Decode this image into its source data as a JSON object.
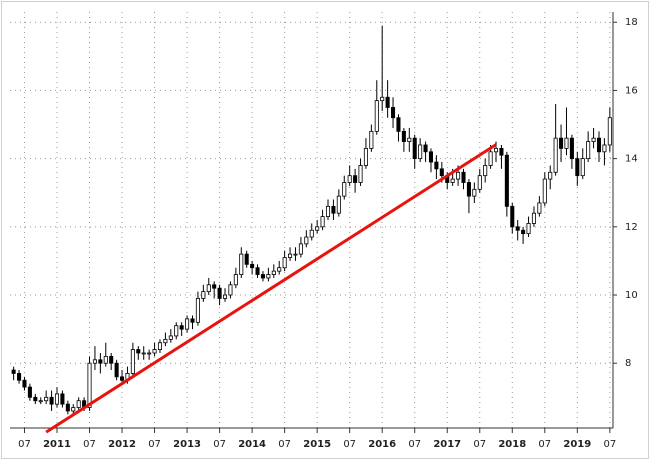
{
  "chart_data": {
    "type": "candlestick",
    "x": [
      "2010-05",
      "2010-06",
      "2010-07",
      "2010-08",
      "2010-09",
      "2010-10",
      "2010-11",
      "2010-12",
      "2011-01",
      "2011-02",
      "2011-03",
      "2011-04",
      "2011-05",
      "2011-06",
      "2011-07",
      "2011-08",
      "2011-09",
      "2011-10",
      "2011-11",
      "2011-12",
      "2012-01",
      "2012-02",
      "2012-03",
      "2012-04",
      "2012-05",
      "2012-06",
      "2012-07",
      "2012-08",
      "2012-09",
      "2012-10",
      "2012-11",
      "2012-12",
      "2013-01",
      "2013-02",
      "2013-03",
      "2013-04",
      "2013-05",
      "2013-06",
      "2013-07",
      "2013-08",
      "2013-09",
      "2013-10",
      "2013-11",
      "2013-12",
      "2014-01",
      "2014-02",
      "2014-03",
      "2014-04",
      "2014-05",
      "2014-06",
      "2014-07",
      "2014-08",
      "2014-09",
      "2014-10",
      "2014-11",
      "2014-12",
      "2015-01",
      "2015-02",
      "2015-03",
      "2015-04",
      "2015-05",
      "2015-06",
      "2015-07",
      "2015-08",
      "2015-09",
      "2015-10",
      "2015-11",
      "2015-12",
      "2016-01",
      "2016-02",
      "2016-03",
      "2016-04",
      "2016-05",
      "2016-06",
      "2016-07",
      "2016-08",
      "2016-09",
      "2016-10",
      "2016-11",
      "2016-12",
      "2017-01",
      "2017-02",
      "2017-03",
      "2017-04",
      "2017-05",
      "2017-06",
      "2017-07",
      "2017-08",
      "2017-09",
      "2017-10",
      "2017-11",
      "2017-12",
      "2018-01",
      "2018-02",
      "2018-03",
      "2018-04",
      "2018-05",
      "2018-06",
      "2018-07",
      "2018-08",
      "2018-09",
      "2018-10",
      "2018-11",
      "2018-12",
      "2019-01",
      "2019-02",
      "2019-03",
      "2019-04",
      "2019-05",
      "2019-06",
      "2019-07"
    ],
    "ohlc": [
      [
        7.8,
        7.9,
        7.5,
        7.7
      ],
      [
        7.7,
        7.8,
        7.4,
        7.5
      ],
      [
        7.5,
        7.6,
        7.2,
        7.3
      ],
      [
        7.3,
        7.4,
        6.9,
        7.0
      ],
      [
        7.0,
        7.1,
        6.8,
        6.9
      ],
      [
        6.9,
        7.0,
        6.8,
        6.9
      ],
      [
        6.9,
        7.2,
        6.8,
        7.0
      ],
      [
        7.0,
        7.2,
        6.6,
        6.8
      ],
      [
        6.8,
        7.3,
        6.7,
        7.1
      ],
      [
        7.1,
        7.2,
        6.7,
        6.8
      ],
      [
        6.8,
        6.9,
        6.5,
        6.6
      ],
      [
        6.6,
        6.8,
        6.5,
        6.7
      ],
      [
        6.7,
        7.0,
        6.6,
        6.9
      ],
      [
        6.9,
        7.0,
        6.6,
        6.7
      ],
      [
        6.7,
        8.2,
        6.6,
        8.0
      ],
      [
        8.0,
        8.5,
        7.8,
        8.1
      ],
      [
        8.1,
        8.3,
        7.7,
        8.0
      ],
      [
        8.0,
        8.6,
        7.9,
        8.2
      ],
      [
        8.2,
        8.3,
        7.8,
        8.0
      ],
      [
        8.0,
        8.1,
        7.5,
        7.6
      ],
      [
        7.6,
        7.8,
        7.4,
        7.5
      ],
      [
        7.5,
        7.9,
        7.4,
        7.7
      ],
      [
        7.7,
        8.6,
        7.6,
        8.4
      ],
      [
        8.4,
        8.5,
        8.1,
        8.3
      ],
      [
        8.3,
        8.5,
        8.1,
        8.3
      ],
      [
        8.3,
        8.4,
        8.1,
        8.3
      ],
      [
        8.3,
        8.6,
        8.2,
        8.4
      ],
      [
        8.4,
        8.7,
        8.3,
        8.6
      ],
      [
        8.6,
        8.9,
        8.5,
        8.7
      ],
      [
        8.7,
        9.0,
        8.6,
        8.8
      ],
      [
        8.8,
        9.2,
        8.7,
        9.1
      ],
      [
        9.1,
        9.2,
        8.8,
        9.0
      ],
      [
        9.0,
        9.4,
        8.9,
        9.3
      ],
      [
        9.3,
        9.4,
        9.0,
        9.2
      ],
      [
        9.2,
        10.1,
        9.1,
        9.9
      ],
      [
        9.9,
        10.3,
        9.8,
        10.1
      ],
      [
        10.1,
        10.5,
        10.0,
        10.3
      ],
      [
        10.3,
        10.4,
        9.9,
        10.2
      ],
      [
        10.2,
        10.3,
        9.7,
        9.9
      ],
      [
        9.9,
        10.2,
        9.8,
        10.0
      ],
      [
        10.0,
        10.4,
        9.9,
        10.3
      ],
      [
        10.3,
        10.8,
        10.2,
        10.6
      ],
      [
        10.6,
        11.4,
        10.5,
        11.2
      ],
      [
        11.2,
        11.3,
        10.8,
        10.9
      ],
      [
        10.9,
        11.0,
        10.6,
        10.8
      ],
      [
        10.8,
        10.9,
        10.5,
        10.6
      ],
      [
        10.6,
        10.7,
        10.4,
        10.5
      ],
      [
        10.5,
        10.8,
        10.4,
        10.6
      ],
      [
        10.6,
        10.9,
        10.5,
        10.7
      ],
      [
        10.7,
        11.0,
        10.6,
        10.8
      ],
      [
        10.8,
        11.3,
        10.7,
        11.1
      ],
      [
        11.1,
        11.4,
        11.0,
        11.2
      ],
      [
        11.2,
        11.4,
        11.0,
        11.2
      ],
      [
        11.2,
        11.7,
        11.1,
        11.5
      ],
      [
        11.5,
        11.9,
        11.4,
        11.7
      ],
      [
        11.7,
        12.1,
        11.6,
        11.9
      ],
      [
        11.9,
        12.2,
        11.8,
        12.0
      ],
      [
        12.0,
        12.5,
        11.9,
        12.3
      ],
      [
        12.3,
        12.8,
        12.2,
        12.6
      ],
      [
        12.6,
        12.8,
        12.2,
        12.4
      ],
      [
        12.4,
        13.1,
        12.3,
        12.9
      ],
      [
        12.9,
        13.5,
        12.8,
        13.3
      ],
      [
        13.3,
        13.8,
        13.2,
        13.5
      ],
      [
        13.5,
        13.7,
        13.0,
        13.3
      ],
      [
        13.3,
        14.0,
        13.2,
        13.8
      ],
      [
        13.8,
        14.6,
        13.7,
        14.3
      ],
      [
        14.3,
        15.0,
        14.2,
        14.8
      ],
      [
        14.8,
        16.3,
        14.7,
        15.7
      ],
      [
        15.7,
        17.9,
        15.4,
        15.8
      ],
      [
        15.8,
        16.3,
        15.2,
        15.5
      ],
      [
        15.5,
        15.8,
        14.9,
        15.2
      ],
      [
        15.2,
        15.3,
        14.5,
        14.8
      ],
      [
        14.8,
        14.9,
        14.2,
        14.5
      ],
      [
        14.5,
        14.9,
        14.2,
        14.6
      ],
      [
        14.6,
        14.7,
        13.7,
        14.0
      ],
      [
        14.0,
        14.6,
        13.9,
        14.4
      ],
      [
        14.4,
        14.5,
        13.9,
        14.2
      ],
      [
        14.2,
        14.3,
        13.6,
        13.9
      ],
      [
        13.9,
        14.1,
        13.4,
        13.7
      ],
      [
        13.7,
        13.9,
        13.3,
        13.5
      ],
      [
        13.5,
        13.6,
        13.1,
        13.3
      ],
      [
        13.3,
        13.7,
        13.2,
        13.4
      ],
      [
        13.4,
        13.8,
        13.2,
        13.6
      ],
      [
        13.6,
        13.7,
        13.1,
        13.3
      ],
      [
        13.3,
        13.4,
        12.4,
        12.9
      ],
      [
        12.9,
        13.3,
        12.7,
        13.1
      ],
      [
        13.1,
        13.7,
        13.0,
        13.5
      ],
      [
        13.5,
        14.0,
        13.3,
        13.8
      ],
      [
        13.8,
        14.4,
        13.7,
        14.2
      ],
      [
        14.2,
        14.5,
        13.9,
        14.3
      ],
      [
        14.3,
        14.4,
        13.7,
        14.1
      ],
      [
        14.1,
        14.2,
        12.3,
        12.6
      ],
      [
        12.6,
        12.7,
        11.8,
        12.0
      ],
      [
        12.0,
        12.2,
        11.6,
        11.9
      ],
      [
        11.9,
        12.0,
        11.5,
        11.8
      ],
      [
        11.8,
        12.3,
        11.7,
        12.1
      ],
      [
        12.1,
        12.6,
        12.0,
        12.4
      ],
      [
        12.4,
        12.9,
        12.3,
        12.7
      ],
      [
        12.7,
        13.6,
        12.6,
        13.4
      ],
      [
        13.4,
        13.8,
        13.1,
        13.6
      ],
      [
        13.6,
        15.6,
        13.5,
        14.6
      ],
      [
        14.6,
        15.0,
        13.9,
        14.3
      ],
      [
        14.3,
        15.5,
        14.1,
        14.6
      ],
      [
        14.6,
        14.7,
        13.7,
        14.0
      ],
      [
        14.0,
        14.2,
        13.2,
        13.5
      ],
      [
        13.5,
        14.3,
        13.4,
        14.0
      ],
      [
        14.0,
        14.8,
        13.9,
        14.5
      ],
      [
        14.5,
        14.9,
        14.3,
        14.6
      ],
      [
        14.6,
        14.8,
        13.9,
        14.2
      ],
      [
        14.2,
        14.6,
        13.8,
        14.4
      ],
      [
        14.4,
        15.5,
        14.2,
        15.2
      ]
    ],
    "up_color": "#ffffff",
    "down_color": "#000000",
    "ylim": [
      6.1,
      18.3
    ],
    "yticks": [
      8,
      10,
      12,
      14,
      16,
      18
    ],
    "xticks": [
      {
        "value": "2010-07",
        "label": "07"
      },
      {
        "value": "2011-01",
        "label": "2011"
      },
      {
        "value": "2011-07",
        "label": "07"
      },
      {
        "value": "2012-01",
        "label": "2012"
      },
      {
        "value": "2012-07",
        "label": "07"
      },
      {
        "value": "2013-01",
        "label": "2013"
      },
      {
        "value": "2013-07",
        "label": "07"
      },
      {
        "value": "2014-01",
        "label": "2014"
      },
      {
        "value": "2014-07",
        "label": "07"
      },
      {
        "value": "2015-01",
        "label": "2015"
      },
      {
        "value": "2015-07",
        "label": "07"
      },
      {
        "value": "2016-01",
        "label": "2016"
      },
      {
        "value": "2016-07",
        "label": "07"
      },
      {
        "value": "2017-01",
        "label": "2017"
      },
      {
        "value": "2017-07",
        "label": "07"
      },
      {
        "value": "2018-01",
        "label": "2018"
      },
      {
        "value": "2018-07",
        "label": "07"
      },
      {
        "value": "2019-01",
        "label": "2019"
      },
      {
        "value": "2019-07",
        "label": "07"
      }
    ],
    "grid": true,
    "trendline": {
      "x": [
        "2010-11",
        "2017-10"
      ],
      "y": [
        5.98,
        14.41
      ],
      "color": "#e8130f"
    }
  }
}
